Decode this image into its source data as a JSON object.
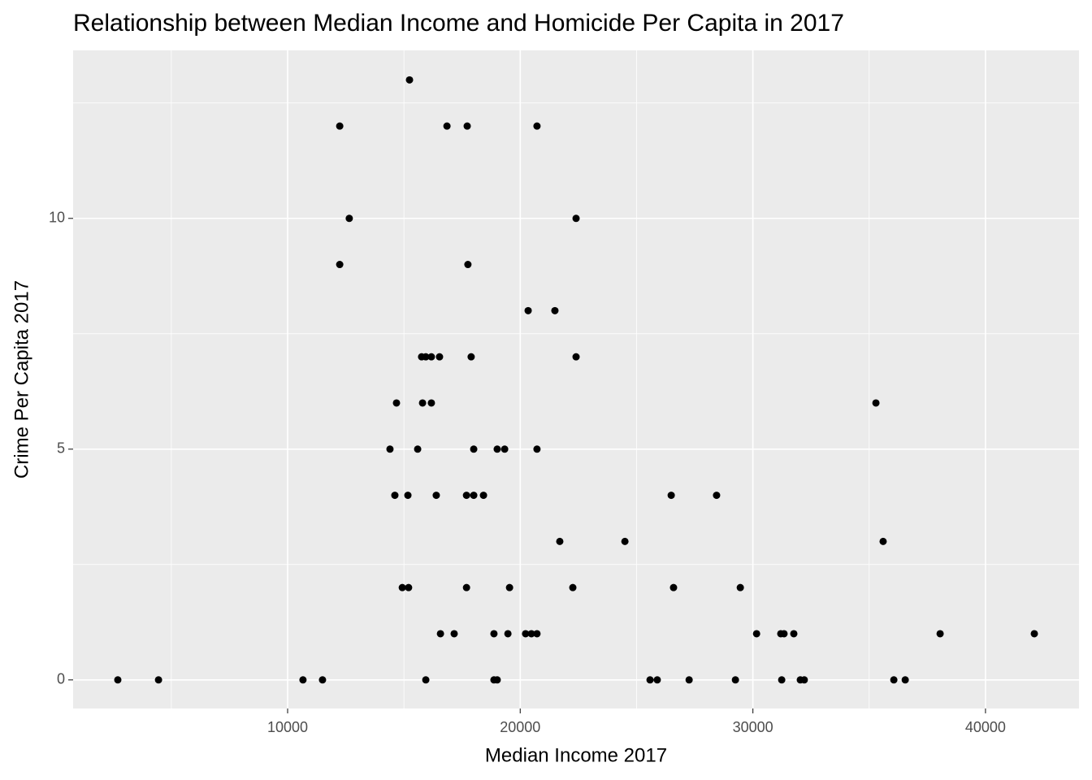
{
  "chart_data": {
    "type": "scatter",
    "title": "Relationship between Median Income and Homicide Per Capita in 2017",
    "x_label": "Median Income 2017",
    "y_label": "Crime Per Capita 2017",
    "x": [
      2700,
      4450,
      10660,
      11500,
      12240,
      12240,
      12650,
      15240,
      16850,
      17720,
      20720,
      22400,
      17750,
      20340,
      21490,
      15760,
      15940,
      16180,
      16530,
      17890,
      22400,
      14680,
      15800,
      16180,
      35290,
      14400,
      15590,
      18000,
      19010,
      19330,
      20720,
      14610,
      15170,
      16390,
      17690,
      18000,
      18420,
      26490,
      28440,
      21700,
      24500,
      35600,
      14930,
      15200,
      17690,
      19540,
      22260,
      26590,
      29460,
      16570,
      17160,
      18870,
      19470,
      20230,
      20480,
      20720,
      30160,
      31200,
      31340,
      31760,
      38050,
      42100,
      15940,
      18870,
      19010,
      25580,
      25890,
      27260,
      29250,
      31240,
      32040,
      32210,
      36060,
      36550
    ],
    "values": [
      0,
      0,
      0,
      0,
      12,
      9,
      10,
      13,
      12,
      12,
      12,
      10,
      9,
      8,
      8,
      7,
      7,
      7,
      7,
      7,
      7,
      6,
      6,
      6,
      6,
      5,
      5,
      5,
      5,
      5,
      5,
      4,
      4,
      4,
      4,
      4,
      4,
      4,
      4,
      3,
      3,
      3,
      2,
      2,
      2,
      2,
      2,
      2,
      2,
      1,
      1,
      1,
      1,
      1,
      1,
      1,
      1,
      1,
      1,
      1,
      1,
      1,
      0,
      0,
      0,
      0,
      0,
      0,
      0,
      0,
      0,
      0,
      0,
      0
    ],
    "color": "#000000",
    "xlim": [
      779,
      44020
    ],
    "ylim": [
      -0.62,
      13.64
    ],
    "xticks": [
      10000,
      20000,
      30000,
      40000
    ],
    "yticks": [
      0,
      5,
      10
    ],
    "x_minor_grid": [
      5000,
      15000,
      25000,
      35000
    ],
    "y_minor_grid": [
      2.5,
      7.5,
      12.5
    ],
    "grid": true
  }
}
